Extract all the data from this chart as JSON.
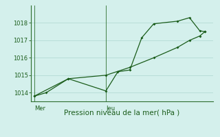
{
  "background_color": "#d4f0ec",
  "grid_color": "#b8ddd8",
  "line_color": "#1a5c1a",
  "spine_color": "#2d6e2d",
  "title": "Pression niveau de la mer( hPa )",
  "xlabel_day_labels": [
    "Mer",
    "Jeu"
  ],
  "xlabel_day_x": [
    0.0,
    0.42
  ],
  "ylim": [
    1013.5,
    1019.0
  ],
  "yticks": [
    1014,
    1015,
    1016,
    1017,
    1018
  ],
  "series1_x": [
    0,
    0.07,
    0.2,
    0.42,
    0.49,
    0.56,
    0.63,
    0.7,
    0.84,
    0.91,
    0.97,
    1.0
  ],
  "series1_y": [
    1013.8,
    1014.0,
    1014.8,
    1014.1,
    1015.2,
    1015.3,
    1017.15,
    1017.95,
    1018.1,
    1018.3,
    1017.55,
    1017.5
  ],
  "series2_x": [
    0,
    0.2,
    0.42,
    0.56,
    0.7,
    0.84,
    0.91,
    0.97,
    1.0
  ],
  "series2_y": [
    1013.8,
    1014.8,
    1015.0,
    1015.45,
    1016.0,
    1016.6,
    1017.0,
    1017.25,
    1017.5
  ],
  "xlim": [
    -0.02,
    1.05
  ],
  "vline_x": [
    0.0,
    0.42
  ],
  "title_fontsize": 7.5,
  "tick_fontsize": 6.0
}
